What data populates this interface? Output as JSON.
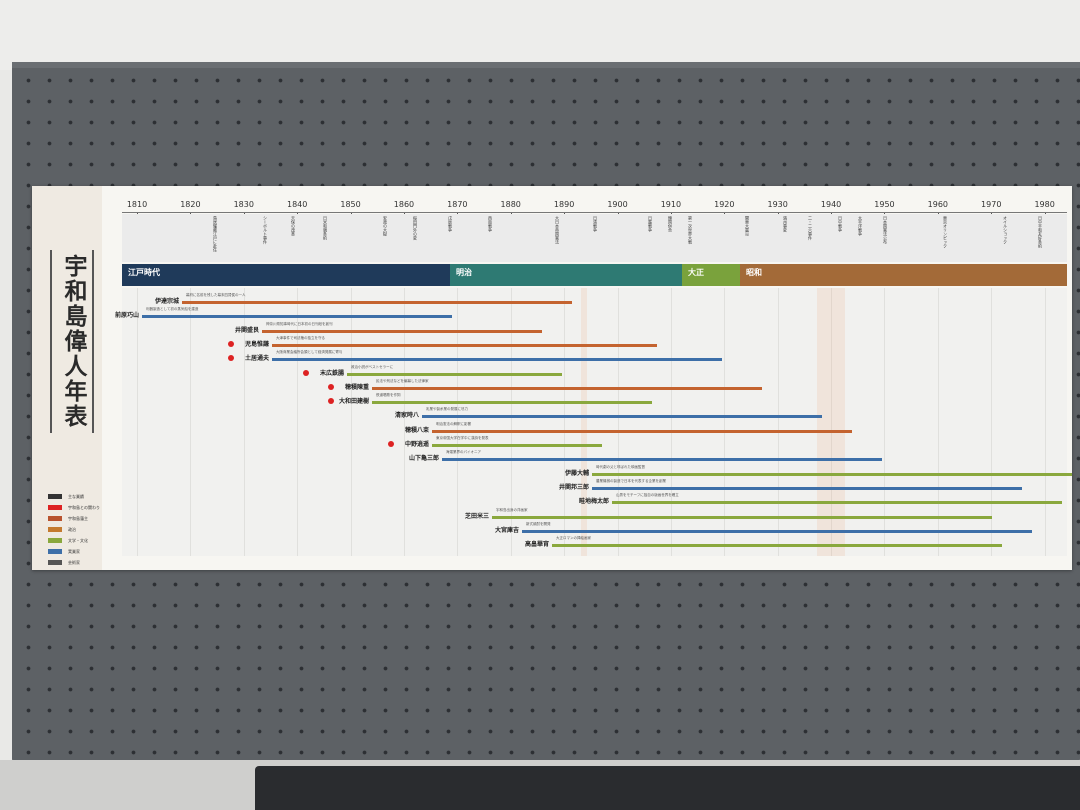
{
  "poster": {
    "title": "宇和島偉人年表",
    "years": [
      "1810",
      "1820",
      "1830",
      "1840",
      "1850",
      "1860",
      "1870",
      "1880",
      "1890",
      "1900",
      "1910",
      "1920",
      "1930",
      "1940",
      "1950",
      "1960",
      "1970",
      "1980"
    ],
    "eras": [
      {
        "label": "江戸時代",
        "color": "#1f3a5a"
      },
      {
        "label": "明治",
        "color": "#2e7a73"
      },
      {
        "label": "大正",
        "color": "#7aa23c"
      },
      {
        "label": "昭和",
        "color": "#a36a38"
      }
    ],
    "events": [
      "鳥居耀蔵江戸に赴任",
      "シーボルト事件",
      "天保の改革",
      "日米和親条約",
      "安政の大獄",
      "桜田門外の変",
      "戊辰戦争",
      "西南戦争",
      "大日本帝国憲法",
      "日清戦争",
      "日露戦争",
      "韓国併合",
      "第一次世界大戦",
      "関東大震災",
      "満州事変",
      "二・二六事件",
      "日中戦争",
      "太平洋戦争",
      "日本国憲法公布",
      "東京オリンピック",
      "オイルショック",
      "日中平和友好条約"
    ],
    "legend": [
      "主な業績",
      "宇和島との関わり",
      "宇和島藩主",
      "政治",
      "文学・文化",
      "実業家",
      "芸術家"
    ],
    "people": [
      {
        "name": "伊達宗城",
        "color": "#c4632f",
        "note": "幕府に名前を残した幕末四賢侯の一人"
      },
      {
        "name": "前原巧山",
        "color": "#3d6fa8",
        "note": "利器製造として初の蒸気船を建造"
      },
      {
        "name": "井関盛艮",
        "color": "#c4632f",
        "note": "神奈川県知事時代に日本初の日刊紙を創刊"
      },
      {
        "name": "児島惟謙",
        "color": "#c4632f",
        "note": "大津事件で司法権の独立を守る"
      },
      {
        "name": "土居通夫",
        "color": "#3d6fa8",
        "note": "大阪商業会議所会頭として経済発展に寄与"
      },
      {
        "name": "末広鉄腸",
        "color": "#8aa83d",
        "note": "政治小説がベストセラーに"
      },
      {
        "name": "穂積陳重",
        "color": "#c4632f",
        "note": "民法や刑法などを編纂した法律家"
      },
      {
        "name": "大和田建樹",
        "color": "#8aa83d",
        "note": "鉄道唱歌を作詞"
      },
      {
        "name": "清家時八",
        "color": "#3d6fa8",
        "note": "乳業や製糸業の発展に尽力"
      },
      {
        "name": "穂積八束",
        "color": "#c4632f",
        "note": "明治憲法の解釈に影響"
      },
      {
        "name": "中野逍遥",
        "color": "#8aa83d",
        "note": "東京帝国大学在学中に漢詩を発表"
      },
      {
        "name": "山下亀三郎",
        "color": "#3d6fa8",
        "note": "海運業界のパイオニア"
      },
      {
        "name": "伊藤大輔",
        "color": "#8aa83d",
        "note": "時代劇の父と呼ばれた映画監督"
      },
      {
        "name": "井関邦三郎",
        "color": "#3d6fa8",
        "note": "農業機械の製造で日本を代表する企業を創業"
      },
      {
        "name": "畦地梅太郎",
        "color": "#8aa83d",
        "note": "山男をモチーフに独自の版画世界を確立"
      },
      {
        "name": "芝田米三",
        "color": "#8aa83d",
        "note": "宇和島出身の洋画家"
      },
      {
        "name": "大宮庫吉",
        "color": "#3d6fa8",
        "note": "新式焼酎を開発"
      },
      {
        "name": "高畠華宵",
        "color": "#8aa83d",
        "note": "大正ロマンの挿絵画家"
      }
    ]
  }
}
